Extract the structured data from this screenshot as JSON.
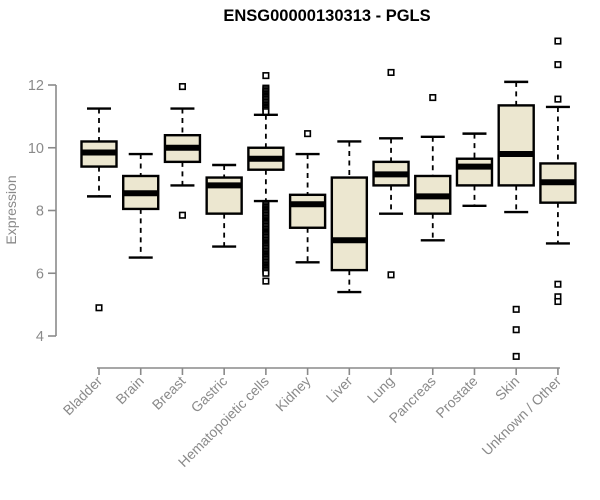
{
  "chart_data": {
    "type": "boxplot",
    "title": "ENSG00000130313 - PGLS",
    "ylabel": "Expression",
    "xlabel": "",
    "ylim": [
      3.2,
      13.6
    ],
    "yticks": [
      4,
      6,
      8,
      10,
      12
    ],
    "grid": false,
    "legend": false,
    "layout_hints": {
      "x_label_rotation_deg": 45,
      "outlier_marker": "open-square",
      "whisker_style": "dashed"
    },
    "colors": {
      "box_fill": "#ece7d0",
      "box_border": "#000000",
      "median": "#000000",
      "whisker": "#000000",
      "outlier_stroke": "#000000",
      "outlier_fill": "#ffffff",
      "axis": "#8a8a8a",
      "tick_text": "#8a8a8a",
      "title_text": "#000000"
    },
    "categories": [
      "Bladder",
      "Brain",
      "Breast",
      "Gastric",
      "Hematopoietic cells",
      "Kidney",
      "Liver",
      "Lung",
      "Pancreas",
      "Prostate",
      "Skin",
      "Unknown / Other"
    ],
    "series": [
      {
        "category": "Bladder",
        "whisker_low": 8.45,
        "q1": 9.4,
        "median": 9.85,
        "q3": 10.2,
        "whisker_high": 11.25,
        "outliers": [
          4.9
        ]
      },
      {
        "category": "Brain",
        "whisker_low": 6.5,
        "q1": 8.05,
        "median": 8.55,
        "q3": 9.1,
        "whisker_high": 9.8,
        "outliers": []
      },
      {
        "category": "Breast",
        "whisker_low": 8.8,
        "q1": 9.55,
        "median": 10.0,
        "q3": 10.4,
        "whisker_high": 11.25,
        "outliers": [
          11.95,
          7.85
        ]
      },
      {
        "category": "Gastric",
        "whisker_low": 6.85,
        "q1": 7.9,
        "median": 8.8,
        "q3": 9.05,
        "whisker_high": 9.45,
        "outliers": []
      },
      {
        "category": "Hematopoietic cells",
        "whisker_low": 8.3,
        "q1": 9.3,
        "median": 9.65,
        "q3": 10.0,
        "whisker_high": 11.05,
        "outliers": [
          12.3,
          11.9,
          11.85,
          11.8,
          11.75,
          11.7,
          11.65,
          11.6,
          11.55,
          11.5,
          11.45,
          11.4,
          11.35,
          11.3,
          11.25,
          11.2,
          11.15,
          8.2,
          8.15,
          8.1,
          8.05,
          8.0,
          7.95,
          7.9,
          7.85,
          7.8,
          7.75,
          7.7,
          7.65,
          7.6,
          7.55,
          7.5,
          7.45,
          7.4,
          7.35,
          7.3,
          7.25,
          7.2,
          7.15,
          7.1,
          7.05,
          7.0,
          6.95,
          6.9,
          6.85,
          6.8,
          6.75,
          6.7,
          6.65,
          6.6,
          6.55,
          6.5,
          6.45,
          6.4,
          6.35,
          6.3,
          6.25,
          6.2,
          6.15,
          6.1,
          6.05,
          6.0,
          5.75
        ]
      },
      {
        "category": "Kidney",
        "whisker_low": 6.35,
        "q1": 7.45,
        "median": 8.2,
        "q3": 8.5,
        "whisker_high": 9.8,
        "outliers": [
          10.45
        ]
      },
      {
        "category": "Liver",
        "whisker_low": 5.4,
        "q1": 6.1,
        "median": 7.05,
        "q3": 9.05,
        "whisker_high": 10.2,
        "outliers": []
      },
      {
        "category": "Lung",
        "whisker_low": 7.9,
        "q1": 8.8,
        "median": 9.15,
        "q3": 9.55,
        "whisker_high": 10.3,
        "outliers": [
          12.4,
          5.95
        ]
      },
      {
        "category": "Pancreas",
        "whisker_low": 7.05,
        "q1": 7.9,
        "median": 8.45,
        "q3": 9.1,
        "whisker_high": 10.35,
        "outliers": [
          11.6
        ]
      },
      {
        "category": "Prostate",
        "whisker_low": 8.15,
        "q1": 8.8,
        "median": 9.4,
        "q3": 9.65,
        "whisker_high": 10.45,
        "outliers": []
      },
      {
        "category": "Skin",
        "whisker_low": 7.95,
        "q1": 8.8,
        "median": 9.8,
        "q3": 11.35,
        "whisker_high": 12.1,
        "outliers": [
          4.85,
          4.2,
          3.35
        ]
      },
      {
        "category": "Unknown / Other",
        "whisker_low": 6.95,
        "q1": 8.25,
        "median": 8.9,
        "q3": 9.5,
        "whisker_high": 11.3,
        "outliers": [
          13.4,
          12.65,
          11.55,
          5.65,
          5.25,
          5.1
        ]
      }
    ]
  }
}
